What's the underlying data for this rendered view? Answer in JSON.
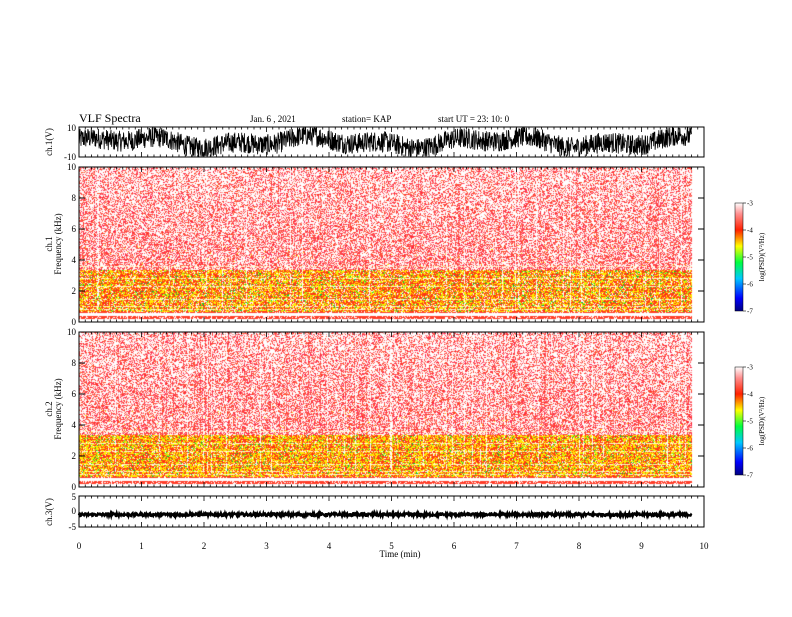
{
  "header": {
    "title": "VLF Spectra",
    "date": "Jan. 6 , 2021",
    "station": "station= KAP",
    "start": "start  UT  =   23: 10: 0"
  },
  "chart_data": [
    {
      "id": "ch1-waveform",
      "type": "line",
      "ylabel": "ch.1(V)",
      "ylim": [
        -10,
        10
      ],
      "yticks": [
        "10",
        "-10"
      ],
      "xlim": [
        0,
        10
      ],
      "color": "#000000"
    },
    {
      "id": "ch1-spectrogram",
      "type": "heatmap",
      "ylabel_top": "ch.1",
      "ylabel": "Frequency  (kHz)",
      "ylim": [
        0,
        10
      ],
      "yticks": [
        "0",
        "2",
        "4",
        "6",
        "8",
        "10"
      ],
      "xlim": [
        0,
        10
      ],
      "data_end_min": 9.8,
      "colorbar": {
        "label": "log(PSD)(V²/Hz)",
        "range": [
          -7,
          -3
        ],
        "ticks": [
          "-3",
          "-4",
          "-5",
          "-6",
          "-7"
        ]
      }
    },
    {
      "id": "ch2-spectrogram",
      "type": "heatmap",
      "ylabel_top": "ch.2",
      "ylabel": "Frequency  (kHz)",
      "ylim": [
        0,
        10
      ],
      "yticks": [
        "0",
        "2",
        "4",
        "6",
        "8",
        "10"
      ],
      "xlim": [
        0,
        10
      ],
      "data_end_min": 9.8,
      "colorbar": {
        "label": "log(PSD)(V²/Hz)",
        "range": [
          -7,
          -3
        ],
        "ticks": [
          "-3",
          "-4",
          "-5",
          "-6",
          "-7"
        ]
      }
    },
    {
      "id": "ch3-waveform",
      "type": "line",
      "ylabel": "ch.3(V)",
      "ylim": [
        -5,
        5
      ],
      "yticks": [
        "5",
        "0",
        "-5"
      ],
      "level": -1,
      "xlim": [
        0,
        10
      ],
      "xlabel": "Time  (min)",
      "xticks": [
        "0",
        "1",
        "2",
        "3",
        "4",
        "5",
        "6",
        "7",
        "8",
        "9",
        "10"
      ]
    }
  ]
}
